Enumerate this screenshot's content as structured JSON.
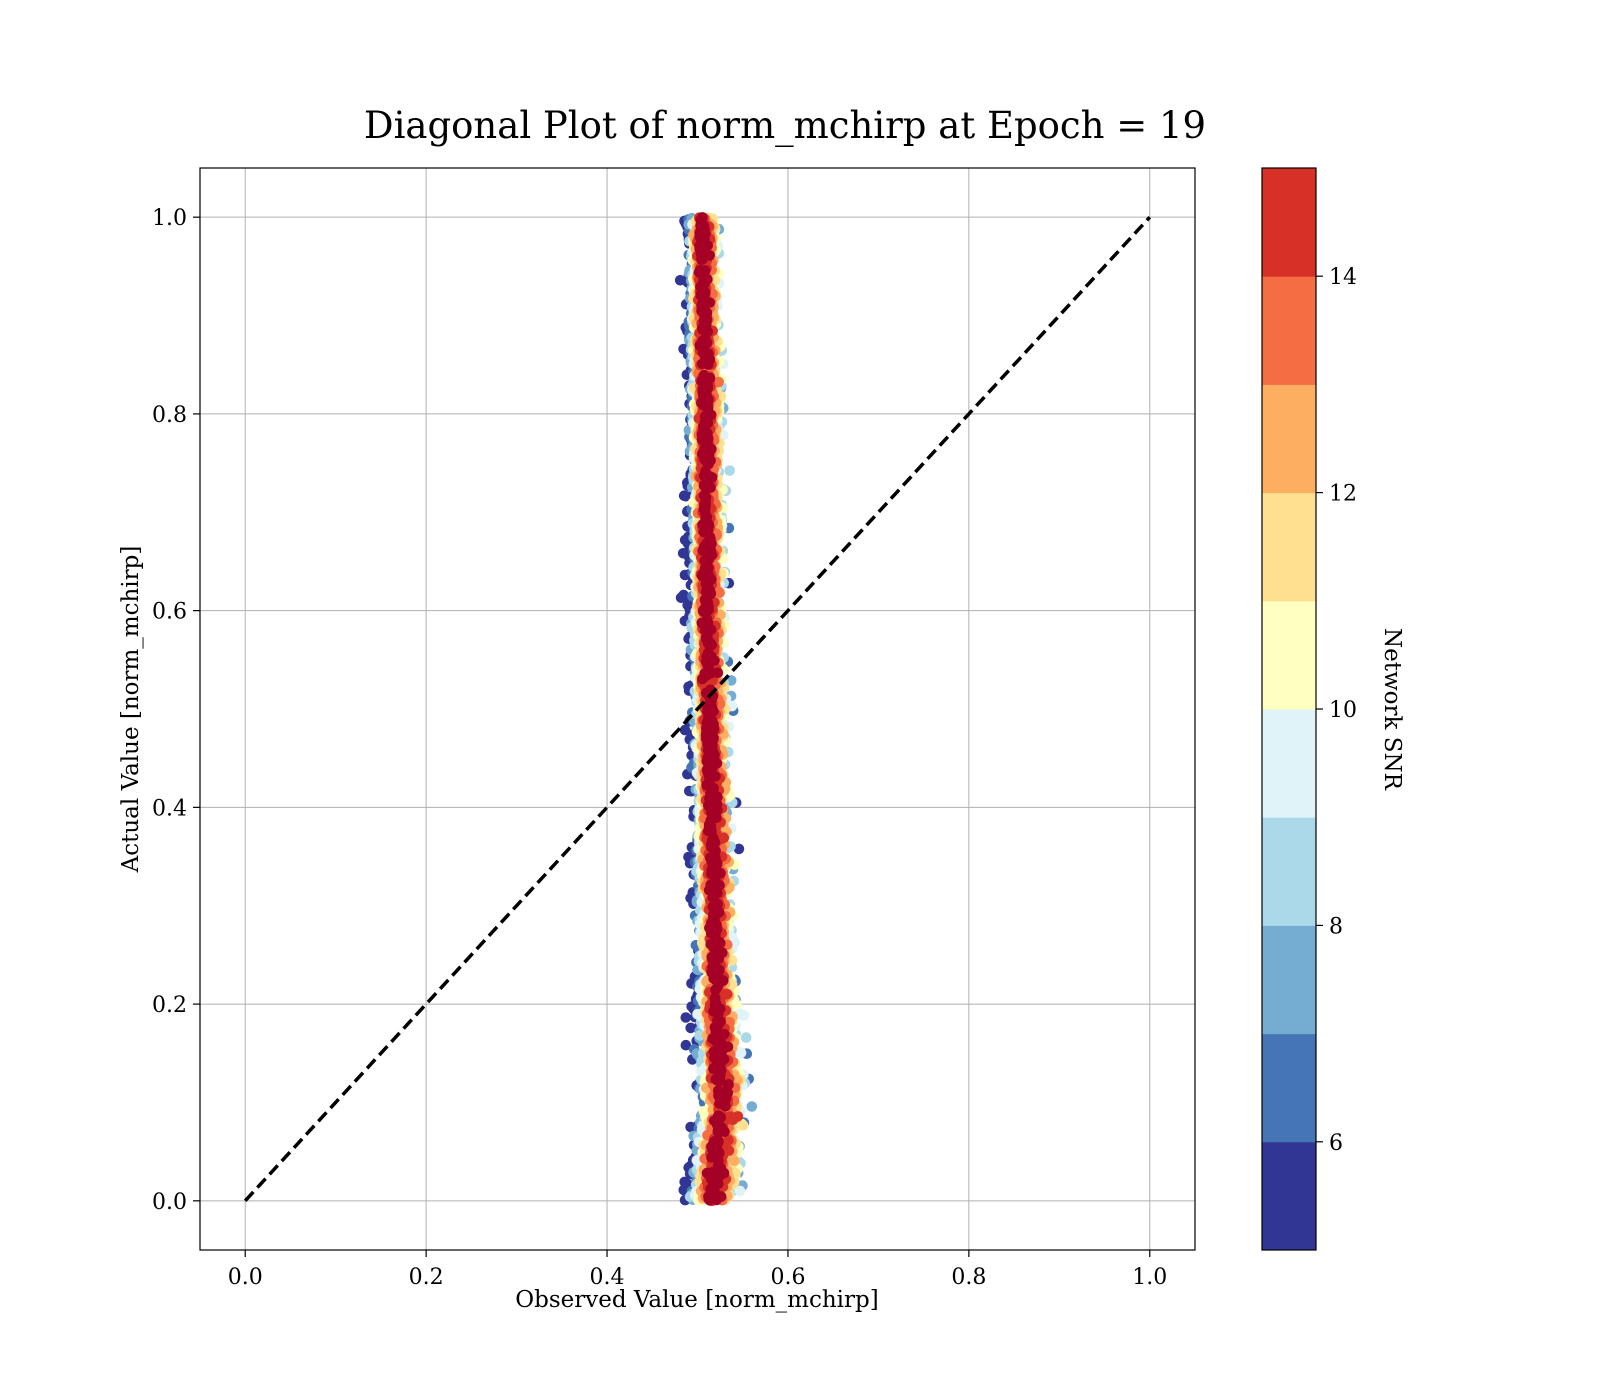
{
  "chart_data": {
    "type": "scatter",
    "title": "Diagonal Plot of norm_mchirp at Epoch = 19",
    "xlabel": "Observed Value [norm_mchirp]",
    "ylabel": "Actual Value [norm_mchirp]",
    "xlim": [
      -0.05,
      1.05
    ],
    "ylim": [
      -0.05,
      1.05
    ],
    "xticks": [
      0.0,
      0.2,
      0.4,
      0.6,
      0.8,
      1.0
    ],
    "yticks": [
      0.0,
      0.2,
      0.4,
      0.6,
      0.8,
      1.0
    ],
    "grid": true,
    "reference_line": {
      "x": [
        0.0,
        1.0
      ],
      "y": [
        0.0,
        1.0
      ],
      "style": "dashed",
      "color": "#000000"
    },
    "colorbar": {
      "label": "Network SNR",
      "range": [
        5,
        15
      ],
      "ticks": [
        6,
        8,
        10,
        12,
        14
      ],
      "levels": [
        5,
        6,
        7,
        8,
        9,
        10,
        11,
        12,
        13,
        14,
        15
      ],
      "colors": [
        "#313695",
        "#4575b4",
        "#74add1",
        "#abd9e9",
        "#e0f3f8",
        "#ffffbf",
        "#fee090",
        "#fdae61",
        "#f46d43",
        "#d73027",
        "#a50026"
      ]
    },
    "point_cloud": {
      "description_of_shape": "vertical band of points",
      "center_x": [
        {
          "y": 0.0,
          "x": 0.515
        },
        {
          "y": 0.1,
          "x": 0.525
        },
        {
          "y": 0.2,
          "x": 0.52
        },
        {
          "y": 0.4,
          "x": 0.515
        },
        {
          "y": 0.6,
          "x": 0.51
        },
        {
          "y": 0.8,
          "x": 0.508
        },
        {
          "y": 1.0,
          "x": 0.505
        }
      ]
    }
  },
  "style": {
    "accent_dark_red": "#a50026",
    "grid_color": "#b0b0b0"
  }
}
